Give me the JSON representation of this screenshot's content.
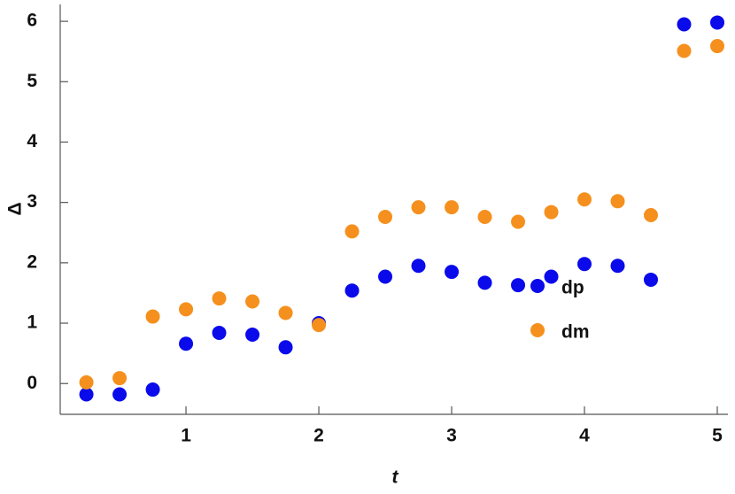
{
  "chart_data": {
    "type": "scatter",
    "x_label": "t",
    "y_label": "Δ",
    "x": [
      0.25,
      0.5,
      0.75,
      1,
      1.25,
      1.5,
      1.75,
      2,
      2.25,
      2.5,
      2.75,
      3,
      3.25,
      3.5,
      3.75,
      4,
      4.25,
      4.5,
      4.75,
      5
    ],
    "series": [
      {
        "name": "dp",
        "color": "#0a0aeb",
        "values": [
          -0.18,
          -0.18,
          -0.1,
          0.66,
          0.84,
          0.81,
          0.6,
          1.0,
          1.54,
          1.77,
          1.95,
          1.85,
          1.67,
          1.63,
          1.77,
          1.98,
          1.95,
          1.72,
          5.95,
          5.98
        ]
      },
      {
        "name": "dm",
        "color": "#f5901e",
        "values": [
          0.02,
          0.09,
          1.11,
          1.23,
          1.41,
          1.36,
          1.17,
          0.97,
          2.52,
          2.76,
          2.92,
          2.92,
          2.76,
          2.68,
          2.84,
          3.05,
          3.02,
          2.79,
          5.51,
          5.59
        ]
      }
    ],
    "xlim": [
      0.053,
      5.08
    ],
    "ylim": [
      -0.51,
      6.28
    ],
    "xticks": [
      1,
      2,
      3,
      4,
      5
    ],
    "yticks": [
      0,
      1,
      2,
      3,
      4,
      5,
      6
    ],
    "legend": "right"
  }
}
